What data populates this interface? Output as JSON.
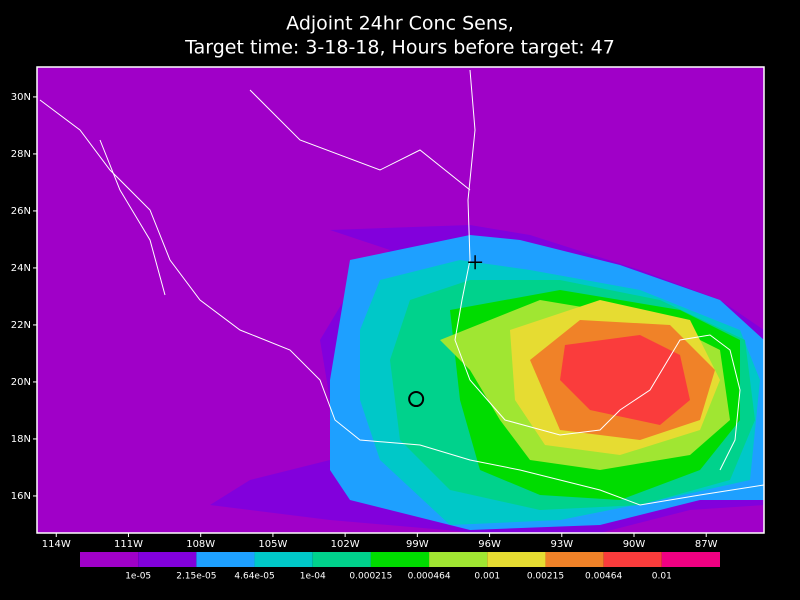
{
  "title": [
    "Adjoint 24hr Conc Sens,",
    "Target time: 3-18-18, Hours before target: 47"
  ],
  "map": {
    "xlim": [
      -114.8,
      -84.6
    ],
    "ylim": [
      14.7,
      31.05
    ],
    "xticks": [
      {
        "value": -114,
        "label": "114W"
      },
      {
        "value": -111,
        "label": "111W"
      },
      {
        "value": -108,
        "label": "108W"
      },
      {
        "value": -105,
        "label": "105W"
      },
      {
        "value": -102,
        "label": "102W"
      },
      {
        "value": -99,
        "label": "99W"
      },
      {
        "value": -96,
        "label": "96W"
      },
      {
        "value": -93,
        "label": "93W"
      },
      {
        "value": -90,
        "label": "90W"
      },
      {
        "value": -87,
        "label": "87W"
      }
    ],
    "yticks": [
      {
        "value": 16,
        "label": "16N"
      },
      {
        "value": 18,
        "label": "18N"
      },
      {
        "value": 20,
        "label": "20N"
      },
      {
        "value": 22,
        "label": "22N"
      },
      {
        "value": 24,
        "label": "24N"
      },
      {
        "value": 26,
        "label": "26N"
      },
      {
        "value": 28,
        "label": "28N"
      },
      {
        "value": 30,
        "label": "30N"
      }
    ],
    "markers": [
      {
        "shape": "plus",
        "lon": -96.6,
        "lat": 24.2
      },
      {
        "shape": "circle",
        "lon": -99.05,
        "lat": 19.4
      }
    ]
  },
  "colorbar": {
    "colors": [
      "#a000c8",
      "#8200dc",
      "#1ea0ff",
      "#00c8c8",
      "#00d28c",
      "#00dc00",
      "#a0e632",
      "#e6dc32",
      "#f08228",
      "#fa3c3c",
      "#f00082"
    ],
    "labels": [
      "1e-05",
      "2.15e-05",
      "4.64e-05",
      "1e-04",
      "0.000215",
      "0.000464",
      "0.001",
      "0.00215",
      "0.00464",
      "0.01"
    ]
  }
}
